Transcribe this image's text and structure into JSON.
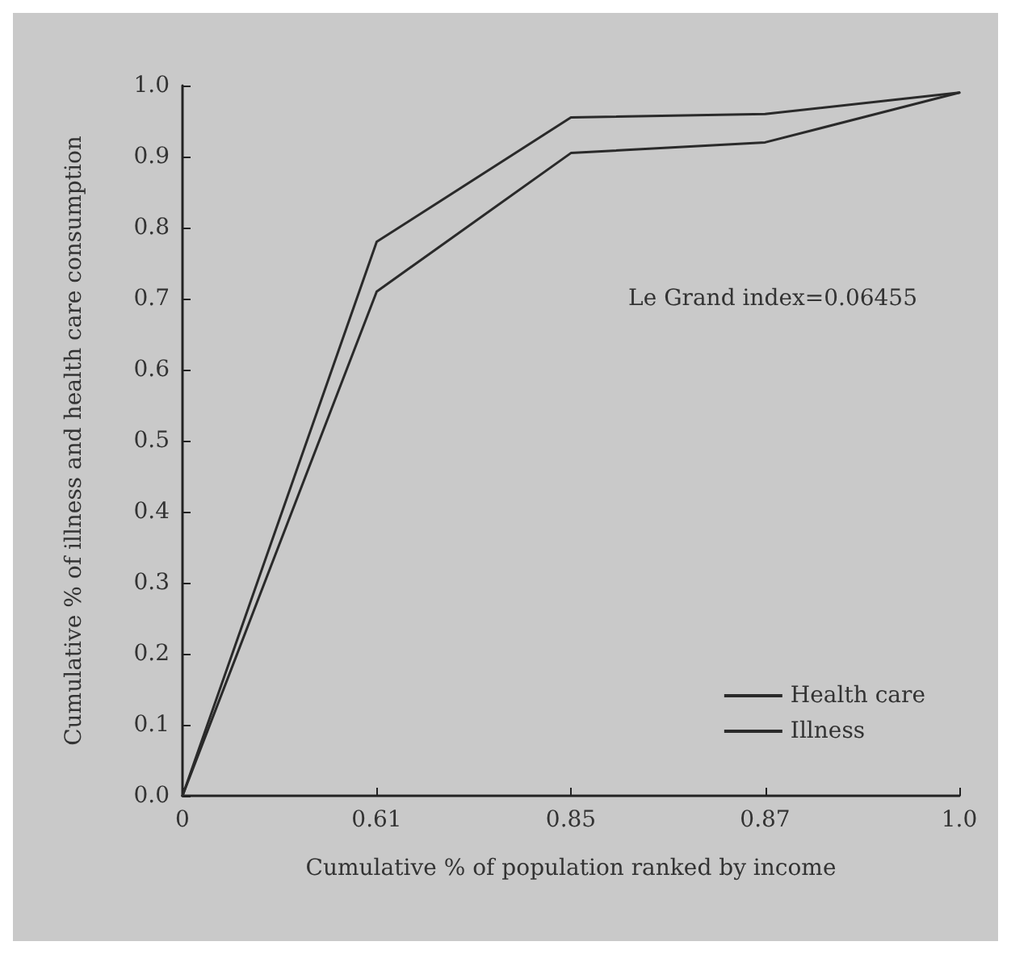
{
  "chart_data": {
    "type": "line",
    "xlabel": "Cumulative % of population ranked by income",
    "ylabel": "Cumulative % of illness and health care consumption",
    "categories": [
      "0",
      "0.61",
      "0.85",
      "0.87",
      "1.0"
    ],
    "series": [
      {
        "name": "Health care",
        "color": "#2a2a2a",
        "values": [
          0,
          0.71,
          0.905,
          0.92,
          0.99
        ]
      },
      {
        "name": "Illness",
        "color": "#2a2a2a",
        "values": [
          0,
          0.78,
          0.955,
          0.96,
          0.99
        ]
      }
    ],
    "ylim": [
      0,
      1
    ],
    "yticks": [
      {
        "value": 0,
        "label": "0.0"
      },
      {
        "value": 0.1,
        "label": "0.1"
      },
      {
        "value": 0.2,
        "label": "0.2"
      },
      {
        "value": 0.3,
        "label": "0.3"
      },
      {
        "value": 0.4,
        "label": "0.4"
      },
      {
        "value": 0.5,
        "label": "0.5"
      },
      {
        "value": 0.6,
        "label": "0.6"
      },
      {
        "value": 0.7,
        "label": "0.7"
      },
      {
        "value": 0.8,
        "label": "0.8"
      },
      {
        "value": 0.9,
        "label": "0.9"
      },
      {
        "value": 1,
        "label": "1.0"
      }
    ],
    "annotations": [
      "Le Grand index=0.06455"
    ],
    "legend": "bottom right",
    "grid": false,
    "marker": "none"
  }
}
